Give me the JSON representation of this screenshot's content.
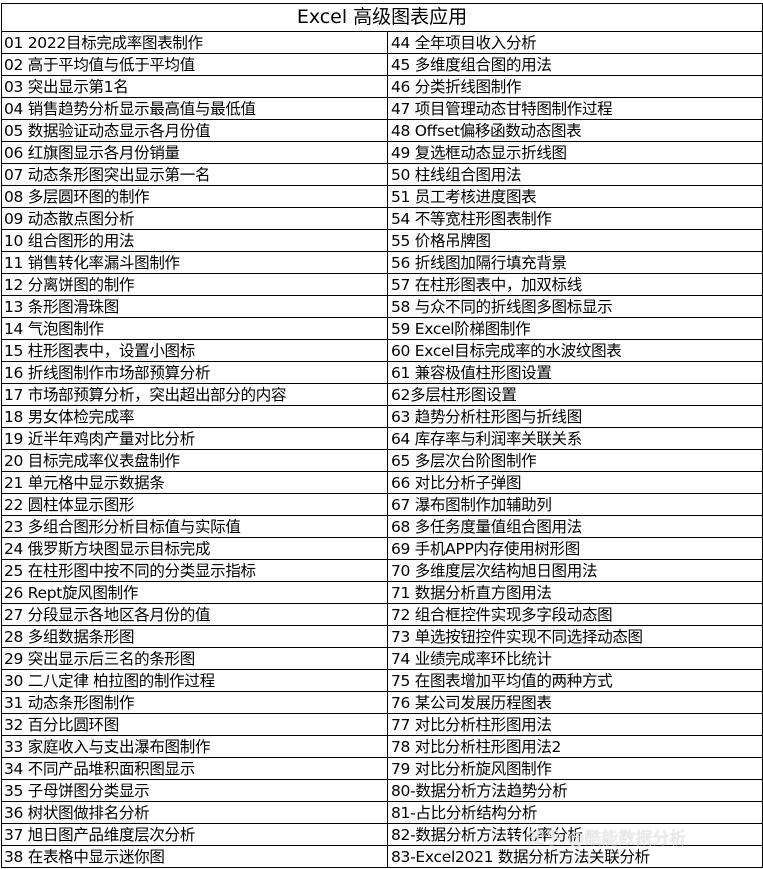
{
  "title": "Excel 高级图表应用",
  "left": [
    "01 2022目标完成率图表制作",
    "02 高于平均值与低于平均值",
    "03 突出显示第1名",
    "04 销售趋势分析显示最高值与最低值",
    "05 数据验证动态显示各月份值",
    "06 红旗图显示各月份销量",
    "07 动态条形图突出显示第一名",
    "08 多层圆环图的制作",
    "09 动态散点图分析",
    "10 组合图形的用法",
    "11 销售转化率漏斗图制作",
    "12 分离饼图的制作",
    "13 条形图滑珠图",
    "14 气泡图制作",
    "15 柱形图表中，设置小图标",
    "16 折线图制作市场部预算分析",
    "17 市场部预算分析，突出超出部分的内容",
    "18 男女体检完成率",
    "19 近半年鸡肉产量对比分析",
    "20 目标完成率仪表盘制作",
    "21 单元格中显示数据条",
    "22 圆柱体显示图形",
    "23 多组合图形分析目标值与实际值",
    "24 俄罗斯方块图显示目标完成",
    "25 在柱形图中按不同的分类显示指标",
    "26 Rept旋风图制作",
    "27 分段显示各地区各月份的值",
    "28 多组数据条形图",
    "29 突出显示后三名的条形图",
    "30 二八定律 柏拉图的制作过程",
    "31 动态条形图制作",
    "32 百分比圆环图",
    "33 家庭收入与支出瀑布图制作",
    "34 不同产品堆积面积图显示",
    "35 子母饼图分类显示",
    "36 树状图做排名分析",
    "37 旭日图产品维度层次分析",
    "38 在表格中显示迷你图"
  ],
  "right": [
    "44 全年项目收入分析",
    "45 多维度组合图的用法",
    "46 分类折线图制作",
    "47 项目管理动态甘特图制作过程",
    "48 Offset偏移函数动态图表",
    "49 复选框动态显示折线图",
    "50 柱线组合图用法",
    "51 员工考核进度图表",
    "54 不等宽柱形图表制作",
    "55 价格吊牌图",
    "56 折线图加隔行填充背景",
    "57 在柱形图表中，加双标线",
    "58 与众不同的折线图多图标显示",
    "59 Excel阶梯图制作",
    "60 Excel目标完成率的水波纹图表",
    "61 兼容极值柱形图设置",
    "62多层柱形图设置",
    "63 趋势分析柱形图与折线图",
    "64 库存率与利润率关联关系",
    "65 多层次台阶图制作",
    "66 对比分析子弹图",
    "67 瀑布图制作加辅助列",
    "68 多任务度量值组合图用法",
    "69 手机APP内存使用树形图",
    "70 多维度层次结构旭日图用法",
    "71 数据分析直方图用法",
    "72 组合框控件实现多字段动态图",
    "73 单选按钮控件实现不同选择动态图",
    "74 业绩完成率环比统计",
    "75 在图表增加平均值的两种方式",
    "76 某公司发展历程图表",
    "77 对比分析柱形图用法",
    "78 对比分析柱形图用法2",
    "79 对比分析旋风图制作",
    "80-数据分析方法趋势分析",
    "81-占比分析结构分析",
    "82-数据分析方法转化率分析",
    "83-Excel2021 数据分析方法关联分析"
  ],
  "watermark": "知乎 @酷能数据分析"
}
